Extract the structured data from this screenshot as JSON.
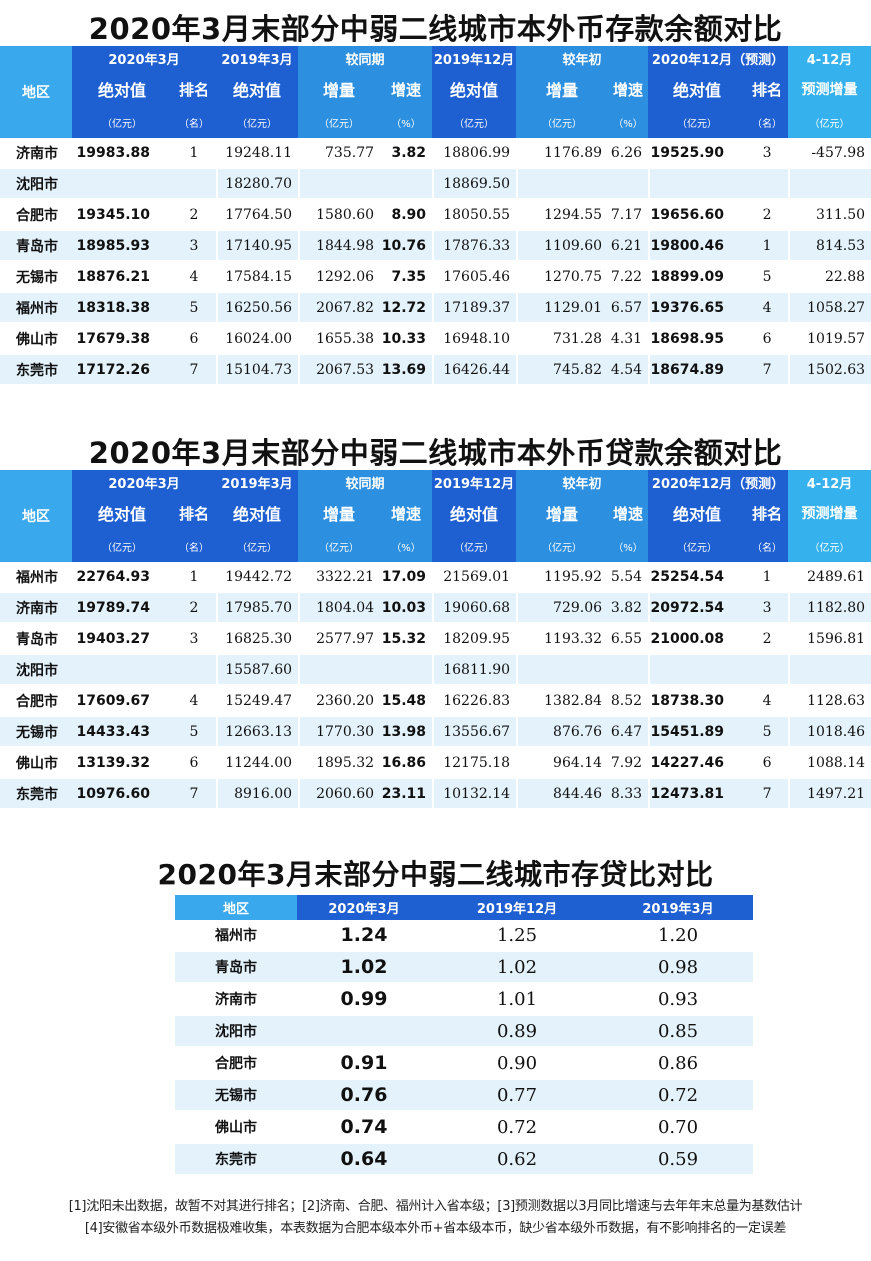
{
  "titles": {
    "deposit": "2020年3月末部分中弱二线城市本外币存款余额对比",
    "loan": "2020年3月末部分中弱二线城市本外币贷款余额对比",
    "ratio": "2020年3月末部分中弱二线城市存贷比对比"
  },
  "header": {
    "region": "地区",
    "g1": "2020年3月",
    "g2": "2019年3月",
    "g3": "较同期",
    "g4": "2019年12月",
    "g5": "较年初",
    "g6": "2020年12月（预测）",
    "g7": "4-12月",
    "abs": "绝对值",
    "rank": "排名",
    "inc": "增量",
    "rate": "增速",
    "forecast_inc": "预测增量",
    "unit_yi": "（亿元）",
    "unit_ming": "（名）",
    "unit_pct": "（%）"
  },
  "deposit_rows": [
    {
      "city": "济南市",
      "a2003": "19983.88",
      "rank1": "1",
      "a1903": "19248.11",
      "yoy_inc": "735.77",
      "yoy_rate": "3.82",
      "a1912": "18806.99",
      "ytd_inc": "1176.89",
      "ytd_rate": "6.26",
      "a2012": "19525.90",
      "rank2": "3",
      "f_inc": "-457.98"
    },
    {
      "city": "沈阳市",
      "a2003": "",
      "rank1": "",
      "a1903": "18280.70",
      "yoy_inc": "",
      "yoy_rate": "",
      "a1912": "18869.50",
      "ytd_inc": "",
      "ytd_rate": "",
      "a2012": "",
      "rank2": "",
      "f_inc": ""
    },
    {
      "city": "合肥市",
      "a2003": "19345.10",
      "rank1": "2",
      "a1903": "17764.50",
      "yoy_inc": "1580.60",
      "yoy_rate": "8.90",
      "a1912": "18050.55",
      "ytd_inc": "1294.55",
      "ytd_rate": "7.17",
      "a2012": "19656.60",
      "rank2": "2",
      "f_inc": "311.50"
    },
    {
      "city": "青岛市",
      "a2003": "18985.93",
      "rank1": "3",
      "a1903": "17140.95",
      "yoy_inc": "1844.98",
      "yoy_rate": "10.76",
      "a1912": "17876.33",
      "ytd_inc": "1109.60",
      "ytd_rate": "6.21",
      "a2012": "19800.46",
      "rank2": "1",
      "f_inc": "814.53"
    },
    {
      "city": "无锡市",
      "a2003": "18876.21",
      "rank1": "4",
      "a1903": "17584.15",
      "yoy_inc": "1292.06",
      "yoy_rate": "7.35",
      "a1912": "17605.46",
      "ytd_inc": "1270.75",
      "ytd_rate": "7.22",
      "a2012": "18899.09",
      "rank2": "5",
      "f_inc": "22.88"
    },
    {
      "city": "福州市",
      "a2003": "18318.38",
      "rank1": "5",
      "a1903": "16250.56",
      "yoy_inc": "2067.82",
      "yoy_rate": "12.72",
      "a1912": "17189.37",
      "ytd_inc": "1129.01",
      "ytd_rate": "6.57",
      "a2012": "19376.65",
      "rank2": "4",
      "f_inc": "1058.27"
    },
    {
      "city": "佛山市",
      "a2003": "17679.38",
      "rank1": "6",
      "a1903": "16024.00",
      "yoy_inc": "1655.38",
      "yoy_rate": "10.33",
      "a1912": "16948.10",
      "ytd_inc": "731.28",
      "ytd_rate": "4.31",
      "a2012": "18698.95",
      "rank2": "6",
      "f_inc": "1019.57"
    },
    {
      "city": "东莞市",
      "a2003": "17172.26",
      "rank1": "7",
      "a1903": "15104.73",
      "yoy_inc": "2067.53",
      "yoy_rate": "13.69",
      "a1912": "16426.44",
      "ytd_inc": "745.82",
      "ytd_rate": "4.54",
      "a2012": "18674.89",
      "rank2": "7",
      "f_inc": "1502.63"
    }
  ],
  "loan_rows": [
    {
      "city": "福州市",
      "a2003": "22764.93",
      "rank1": "1",
      "a1903": "19442.72",
      "yoy_inc": "3322.21",
      "yoy_rate": "17.09",
      "a1912": "21569.01",
      "ytd_inc": "1195.92",
      "ytd_rate": "5.54",
      "a2012": "25254.54",
      "rank2": "1",
      "f_inc": "2489.61"
    },
    {
      "city": "济南市",
      "a2003": "19789.74",
      "rank1": "2",
      "a1903": "17985.70",
      "yoy_inc": "1804.04",
      "yoy_rate": "10.03",
      "a1912": "19060.68",
      "ytd_inc": "729.06",
      "ytd_rate": "3.82",
      "a2012": "20972.54",
      "rank2": "3",
      "f_inc": "1182.80"
    },
    {
      "city": "青岛市",
      "a2003": "19403.27",
      "rank1": "3",
      "a1903": "16825.30",
      "yoy_inc": "2577.97",
      "yoy_rate": "15.32",
      "a1912": "18209.95",
      "ytd_inc": "1193.32",
      "ytd_rate": "6.55",
      "a2012": "21000.08",
      "rank2": "2",
      "f_inc": "1596.81"
    },
    {
      "city": "沈阳市",
      "a2003": "",
      "rank1": "",
      "a1903": "15587.60",
      "yoy_inc": "",
      "yoy_rate": "",
      "a1912": "16811.90",
      "ytd_inc": "",
      "ytd_rate": "",
      "a2012": "",
      "rank2": "",
      "f_inc": ""
    },
    {
      "city": "合肥市",
      "a2003": "17609.67",
      "rank1": "4",
      "a1903": "15249.47",
      "yoy_inc": "2360.20",
      "yoy_rate": "15.48",
      "a1912": "16226.83",
      "ytd_inc": "1382.84",
      "ytd_rate": "8.52",
      "a2012": "18738.30",
      "rank2": "4",
      "f_inc": "1128.63"
    },
    {
      "city": "无锡市",
      "a2003": "14433.43",
      "rank1": "5",
      "a1903": "12663.13",
      "yoy_inc": "1770.30",
      "yoy_rate": "13.98",
      "a1912": "13556.67",
      "ytd_inc": "876.76",
      "ytd_rate": "6.47",
      "a2012": "15451.89",
      "rank2": "5",
      "f_inc": "1018.46"
    },
    {
      "city": "佛山市",
      "a2003": "13139.32",
      "rank1": "6",
      "a1903": "11244.00",
      "yoy_inc": "1895.32",
      "yoy_rate": "16.86",
      "a1912": "12175.18",
      "ytd_inc": "964.14",
      "ytd_rate": "7.92",
      "a2012": "14227.46",
      "rank2": "6",
      "f_inc": "1088.14"
    },
    {
      "city": "东莞市",
      "a2003": "10976.60",
      "rank1": "7",
      "a1903": "8916.00",
      "yoy_inc": "2060.60",
      "yoy_rate": "23.11",
      "a1912": "10132.14",
      "ytd_inc": "844.46",
      "ytd_rate": "8.33",
      "a2012": "12473.81",
      "rank2": "7",
      "f_inc": "1497.21"
    }
  ],
  "ratio_header": [
    "地区",
    "2020年3月",
    "2019年12月",
    "2019年3月"
  ],
  "ratio_rows": [
    {
      "city": "福州市",
      "r2003": "1.24",
      "r1912": "1.25",
      "r1903": "1.20"
    },
    {
      "city": "青岛市",
      "r2003": "1.02",
      "r1912": "1.02",
      "r1903": "0.98"
    },
    {
      "city": "济南市",
      "r2003": "0.99",
      "r1912": "1.01",
      "r1903": "0.93"
    },
    {
      "city": "沈阳市",
      "r2003": "",
      "r1912": "0.89",
      "r1903": "0.85"
    },
    {
      "city": "合肥市",
      "r2003": "0.91",
      "r1912": "0.90",
      "r1903": "0.86"
    },
    {
      "city": "无锡市",
      "r2003": "0.76",
      "r1912": "0.77",
      "r1903": "0.72"
    },
    {
      "city": "佛山市",
      "r2003": "0.74",
      "r1912": "0.72",
      "r1903": "0.70"
    },
    {
      "city": "东莞市",
      "r2003": "0.64",
      "r1912": "0.62",
      "r1903": "0.59"
    }
  ],
  "notes": [
    "[1]沈阳未出数据，故暂不对其进行排名；[2]济南、合肥、福州计入省本级；[3]预测数据以3月同比增速与去年年末总量为基数估计",
    "[4]安徽省本级外币数据极难收集，本表数据为合肥本级本外币+省本级本币，缺少省本级外币数据，有不影响排名的一定误差"
  ]
}
